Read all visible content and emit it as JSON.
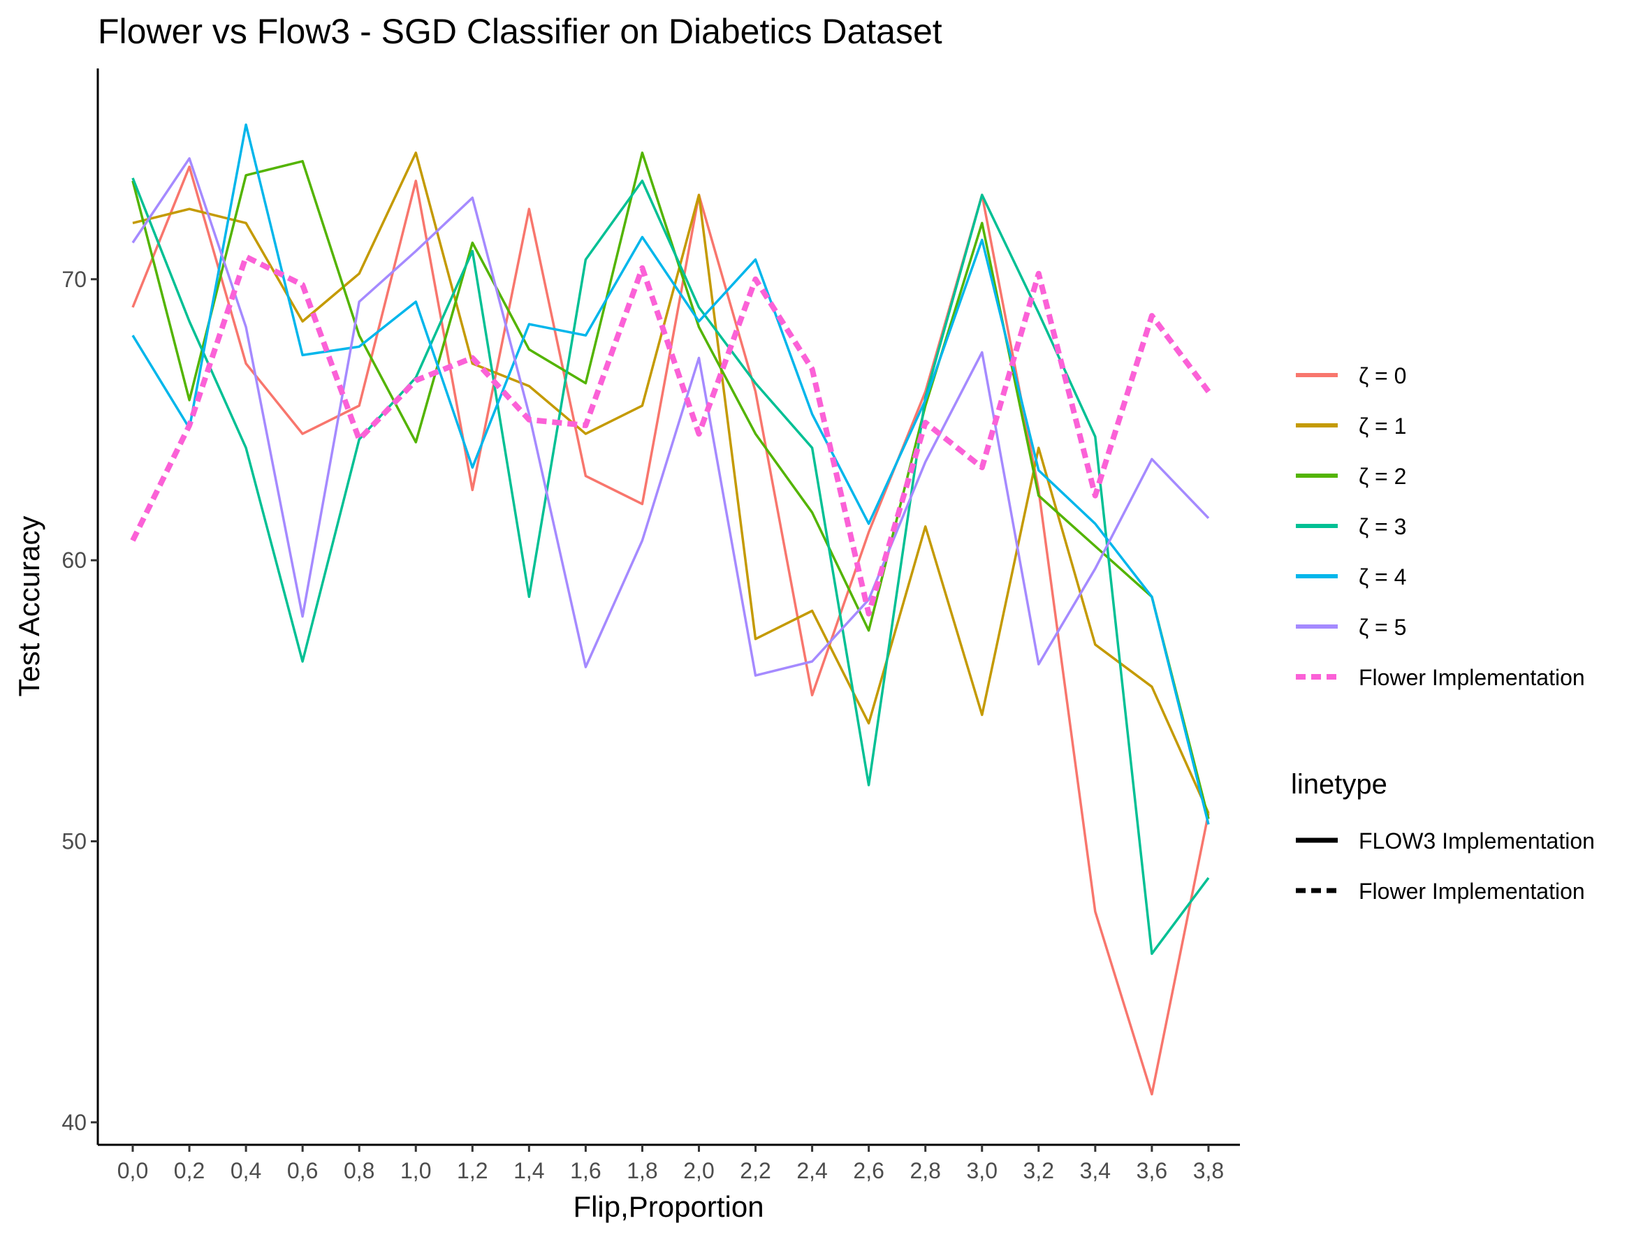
{
  "chart_data": {
    "type": "line",
    "title": "Flower vs Flow3 - SGD Classifier on Diabetics Dataset",
    "xlabel": "Flip,Proportion",
    "ylabel": "Test Accuracy",
    "categories": [
      "0,0",
      "0,2",
      "0,4",
      "0,6",
      "0,8",
      "1,0",
      "1,2",
      "1,4",
      "1,6",
      "1,8",
      "2,0",
      "2,2",
      "2,4",
      "2,6",
      "2,8",
      "3,0",
      "3,2",
      "3,4",
      "3,6",
      "3,8"
    ],
    "yticks": [
      "40",
      "50",
      "60",
      "70"
    ],
    "ylim": [
      39.2,
      77.5
    ],
    "grid": false,
    "legend_placement": "right",
    "series": [
      {
        "name": "ζ = 0",
        "color": "#F8766D",
        "linetype": "solid",
        "values": [
          69.0,
          74.0,
          67.0,
          64.5,
          65.5,
          73.5,
          62.5,
          72.5,
          63.0,
          62.0,
          73.0,
          66.0,
          55.2,
          61.0,
          66.0,
          73.0,
          62.5,
          47.5,
          41.0,
          51.0
        ]
      },
      {
        "name": "ζ = 1",
        "color": "#C49A00",
        "linetype": "solid",
        "values": [
          72.0,
          72.5,
          72.0,
          68.5,
          70.2,
          74.5,
          67.0,
          66.2,
          64.5,
          65.5,
          73.0,
          57.2,
          58.2,
          54.2,
          61.2,
          54.5,
          64.0,
          57.0,
          55.5,
          51.0
        ]
      },
      {
        "name": "ζ = 2",
        "color": "#53B400",
        "linetype": "solid",
        "values": [
          73.5,
          65.7,
          73.7,
          74.2,
          68.0,
          64.2,
          71.3,
          67.5,
          66.3,
          74.5,
          68.3,
          64.5,
          61.7,
          57.5,
          65.5,
          72.0,
          62.3,
          60.5,
          58.7,
          50.8
        ]
      },
      {
        "name": "ζ = 3",
        "color": "#00C094",
        "linetype": "solid",
        "values": [
          73.6,
          68.5,
          64.0,
          56.4,
          64.3,
          66.5,
          71.0,
          58.7,
          70.7,
          73.5,
          69.0,
          66.3,
          64.0,
          52.0,
          65.8,
          73.0,
          68.8,
          64.4,
          46.0,
          48.7
        ]
      },
      {
        "name": "ζ = 4",
        "color": "#00B6EB",
        "linetype": "solid",
        "values": [
          68.0,
          64.7,
          75.5,
          67.3,
          67.6,
          69.2,
          63.3,
          68.4,
          68.0,
          71.5,
          68.5,
          70.7,
          65.2,
          61.3,
          65.7,
          71.4,
          63.2,
          61.3,
          58.7,
          50.6
        ]
      },
      {
        "name": "ζ = 5",
        "color": "#A58AFF",
        "linetype": "solid",
        "values": [
          71.3,
          74.3,
          68.3,
          58.0,
          69.2,
          71.0,
          72.9,
          65.2,
          56.2,
          60.7,
          67.2,
          55.9,
          56.4,
          58.6,
          63.5,
          67.4,
          56.3,
          59.7,
          63.6,
          61.5
        ]
      },
      {
        "name": "Flower Implementation",
        "color": "#FB61D7",
        "linetype": "dashed",
        "values": [
          60.7,
          64.8,
          70.8,
          69.8,
          64.3,
          66.4,
          67.2,
          65.0,
          64.8,
          70.4,
          64.5,
          70.0,
          66.8,
          58.1,
          64.9,
          63.3,
          70.2,
          62.3,
          68.7,
          66.0
        ]
      }
    ],
    "linetype_legend": {
      "title": "linetype",
      "entries": [
        {
          "label": "FLOW3 Implementation",
          "style": "solid"
        },
        {
          "label": "Flower Implementation",
          "style": "dashed"
        }
      ]
    }
  }
}
